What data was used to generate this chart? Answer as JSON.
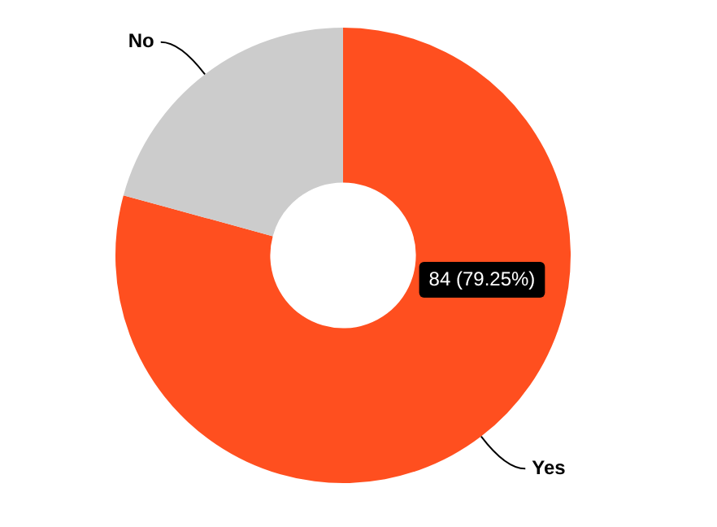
{
  "chart_data": {
    "type": "donut",
    "categories": [
      "Yes",
      "No"
    ],
    "values": [
      84,
      22
    ],
    "colors": [
      "#ff4f1f",
      "#cccccc"
    ],
    "value_labels": [
      "84 (79.25%)",
      null
    ],
    "legend": false
  }
}
